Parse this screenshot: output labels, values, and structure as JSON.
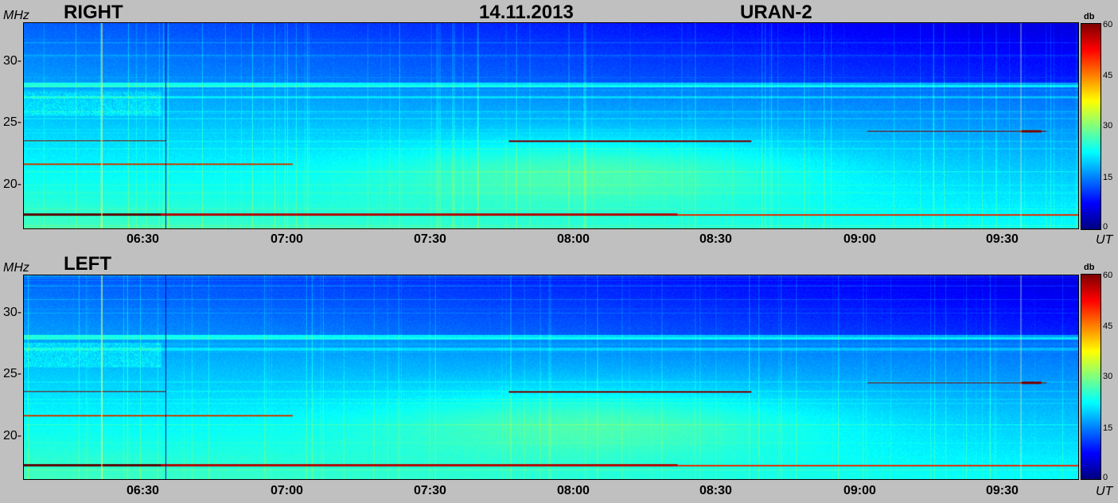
{
  "header": {
    "date": "14.11.2013",
    "instrument": "URAN-2"
  },
  "colors": {
    "background": "#c0c0c0",
    "colormap": "jet"
  },
  "chart_data": [
    {
      "type": "heatmap",
      "title": "RIGHT",
      "ylabel": "MHz",
      "xlabel": "UT",
      "x_tick_labels": [
        "06:30",
        "07:00",
        "07:30",
        "08:00",
        "08:30",
        "09:00",
        "09:30"
      ],
      "y_tick_labels": [
        "20-",
        "25-",
        "30-"
      ],
      "y_ticks": [
        20,
        25,
        30
      ],
      "ylim": [
        16.5,
        33
      ],
      "colorbar": {
        "label": "db",
        "range": [
          0,
          60
        ],
        "tick_labels": [
          "0",
          "15",
          "30",
          "45",
          "60"
        ]
      },
      "time_range": [
        "06:03",
        "09:45"
      ]
    },
    {
      "type": "heatmap",
      "title": "LEFT",
      "ylabel": "MHz",
      "xlabel": "UT",
      "x_tick_labels": [
        "06:30",
        "07:00",
        "07:30",
        "08:00",
        "08:30",
        "09:00",
        "09:30"
      ],
      "y_tick_labels": [
        "20-",
        "25-",
        "30-"
      ],
      "y_ticks": [
        20,
        25,
        30
      ],
      "ylim": [
        16.5,
        33
      ],
      "colorbar": {
        "label": "db",
        "range": [
          0,
          60
        ],
        "tick_labels": [
          "0",
          "15",
          "30",
          "45",
          "60"
        ]
      },
      "time_range": [
        "06:03",
        "09:45"
      ]
    }
  ]
}
